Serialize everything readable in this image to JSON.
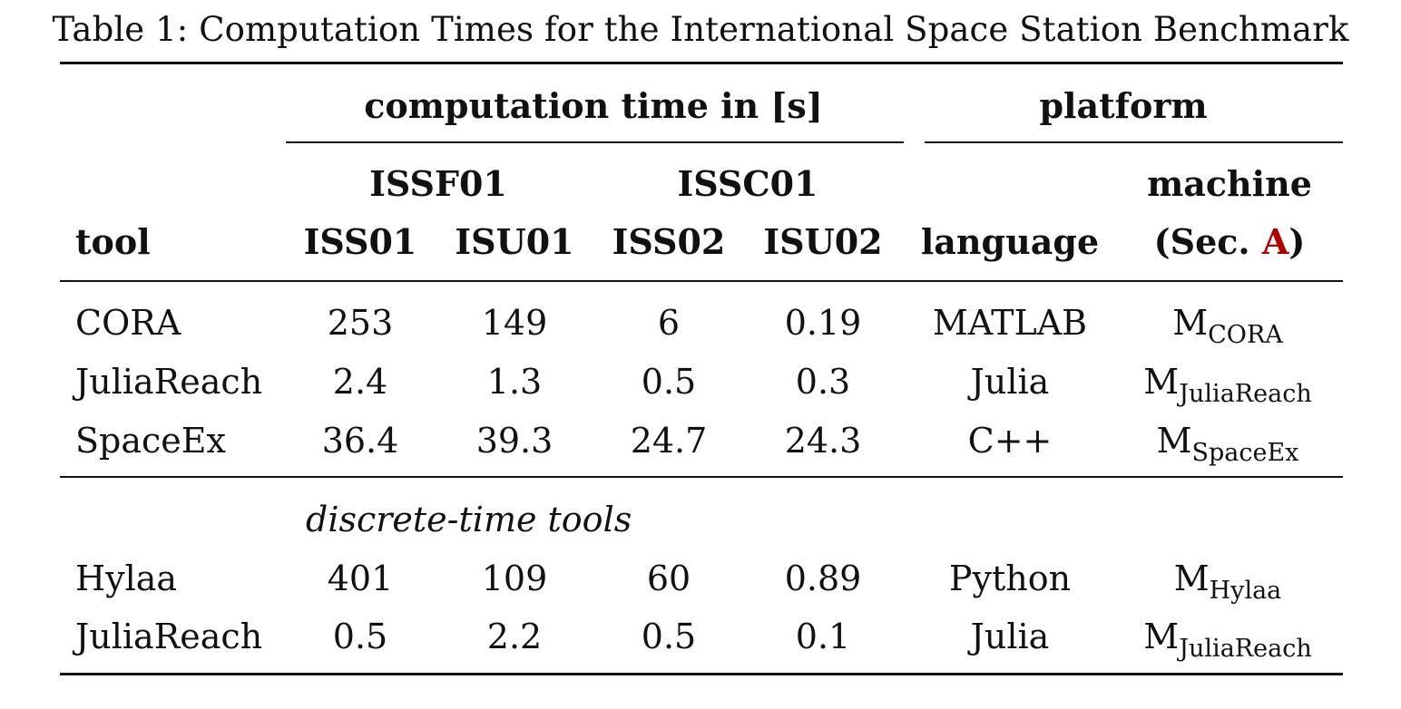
{
  "caption": "Table 1: Computation Times for the International Space Station Benchmark",
  "header": {
    "group_time": "computation time in [s]",
    "group_platform": "platform",
    "sub_issf": "ISSF01",
    "sub_issc": "ISSC01",
    "machine_line1": "machine",
    "machine_open": "(Sec. ",
    "machine_ref": "A",
    "machine_close": ")",
    "col_tool": "tool",
    "col_iss01": "ISS01",
    "col_isu01": "ISU01",
    "col_iss02": "ISS02",
    "col_isu02": "ISU02",
    "col_language": "language"
  },
  "section_label": "discrete-time tools",
  "rows": [
    {
      "tool": "CORA",
      "iss01": "253",
      "isu01": "149",
      "iss02": "6",
      "isu02": "0.19",
      "language": "MATLAB",
      "machine_base": "M",
      "machine_sub": "CORA"
    },
    {
      "tool": "JuliaReach",
      "iss01": "2.4",
      "isu01": "1.3",
      "iss02": "0.5",
      "isu02": "0.3",
      "language": "Julia",
      "machine_base": "M",
      "machine_sub": "JuliaReach"
    },
    {
      "tool": "SpaceEx",
      "iss01": "36.4",
      "isu01": "39.3",
      "iss02": "24.7",
      "isu02": "24.3",
      "language": "C++",
      "machine_base": "M",
      "machine_sub": "SpaceEx"
    },
    {
      "tool": "Hylaa",
      "iss01": "401",
      "isu01": "109",
      "iss02": "60",
      "isu02": "0.89",
      "language": "Python",
      "machine_base": "M",
      "machine_sub": "Hylaa"
    },
    {
      "tool": "JuliaReach",
      "iss01": "0.5",
      "isu01": "2.2",
      "iss02": "0.5",
      "isu02": "0.1",
      "language": "Julia",
      "machine_base": "M",
      "machine_sub": "JuliaReach"
    }
  ],
  "colors": {
    "text": "#111111",
    "reference_link": "#b00000"
  }
}
